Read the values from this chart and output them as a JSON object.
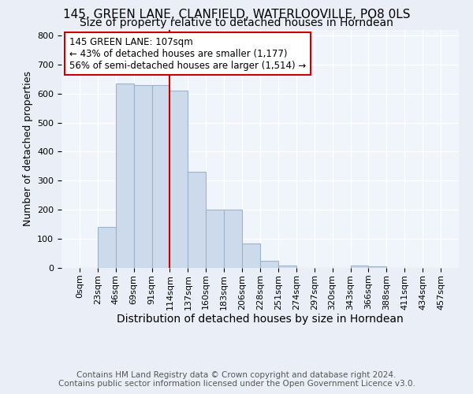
{
  "title1": "145, GREEN LANE, CLANFIELD, WATERLOOVILLE, PO8 0LS",
  "title2": "Size of property relative to detached houses in Horndean",
  "xlabel": "Distribution of detached houses by size in Horndean",
  "ylabel": "Number of detached properties",
  "footer1": "Contains HM Land Registry data © Crown copyright and database right 2024.",
  "footer2": "Contains public sector information licensed under the Open Government Licence v3.0.",
  "bin_labels": [
    "0sqm",
    "23sqm",
    "46sqm",
    "69sqm",
    "91sqm",
    "114sqm",
    "137sqm",
    "160sqm",
    "183sqm",
    "206sqm",
    "228sqm",
    "251sqm",
    "274sqm",
    "297sqm",
    "320sqm",
    "343sqm",
    "366sqm",
    "388sqm",
    "411sqm",
    "434sqm",
    "457sqm"
  ],
  "bar_heights": [
    0,
    140,
    635,
    630,
    630,
    610,
    330,
    200,
    200,
    85,
    25,
    8,
    0,
    0,
    0,
    8,
    5,
    0,
    0,
    0,
    5
  ],
  "bar_color": "#ccdaeb",
  "bar_edge_color": "#9ab4cc",
  "vline_pos": 5,
  "vline_color": "#cc0000",
  "annotation_text": "145 GREEN LANE: 107sqm\n← 43% of detached houses are smaller (1,177)\n56% of semi-detached houses are larger (1,514) →",
  "annotation_box_color": "#ffffff",
  "annotation_box_edge": "#cc0000",
  "ylim": [
    0,
    820
  ],
  "yticks": [
    0,
    100,
    200,
    300,
    400,
    500,
    600,
    700,
    800
  ],
  "bg_color": "#eaeff7",
  "plot_bg_color": "#f0f4fb",
  "grid_color": "#ffffff",
  "title1_fontsize": 11,
  "title2_fontsize": 10,
  "xlabel_fontsize": 10,
  "ylabel_fontsize": 9,
  "tick_fontsize": 8,
  "footer_fontsize": 7.5,
  "annot_fontsize": 8.5
}
